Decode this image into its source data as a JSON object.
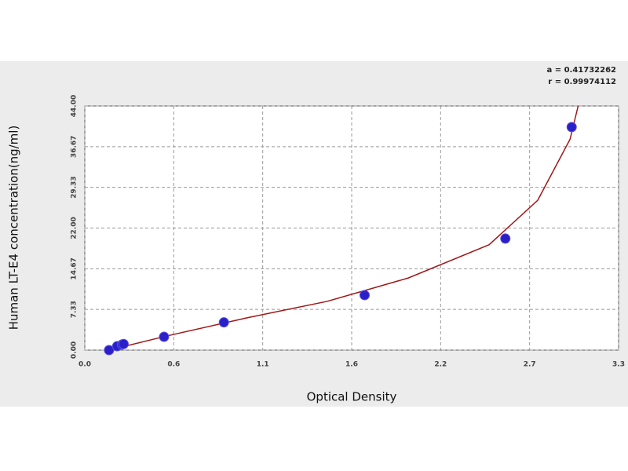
{
  "chart_data": {
    "type": "scatter",
    "annotations": [
      "a = 0.41732262",
      "r = 0.99974112"
    ],
    "xlabel": "Optical Density",
    "ylabel": "Human  LT-E4 concentration(ng/ml)",
    "xlim": [
      0,
      3.3
    ],
    "xticks": [
      {
        "value": 0,
        "label": "0.0"
      },
      {
        "value": 0.55,
        "label": "0.6"
      },
      1.1,
      {
        "value": 1.65,
        "label": "1.6"
      },
      2.2,
      {
        "value": 2.75,
        "label": "2.7"
      },
      3.3
    ],
    "ylim": [
      0,
      44
    ],
    "yticks": [
      {
        "value": 0,
        "label": "0.00"
      },
      {
        "value": 7.333,
        "label": "7.33"
      },
      {
        "value": 14.667,
        "label": "14.67"
      },
      {
        "value": 22,
        "label": "22.00"
      },
      {
        "value": 29.333,
        "label": "29.33"
      },
      {
        "value": 36.667,
        "label": "36.67"
      },
      {
        "value": 44,
        "label": "44.00"
      }
    ],
    "grid": true,
    "series": [
      {
        "color": "#2a1fc8",
        "x": [
          0.15,
          0.2,
          0.23,
          0.24,
          0.49,
          0.86,
          1.73,
          2.6,
          3.01
        ],
        "values": [
          0,
          0.7,
          1.0,
          1.1,
          2.4,
          5.0,
          9.9,
          20.1,
          40.2
        ]
      },
      {
        "color": "#a01818",
        "x": [
          0.15,
          0.5,
          1.0,
          1.5,
          2.0,
          2.5,
          2.8,
          3.0,
          3.05
        ],
        "values": [
          0,
          2.5,
          5.8,
          8.8,
          13,
          19,
          27,
          38,
          44
        ]
      }
    ]
  }
}
